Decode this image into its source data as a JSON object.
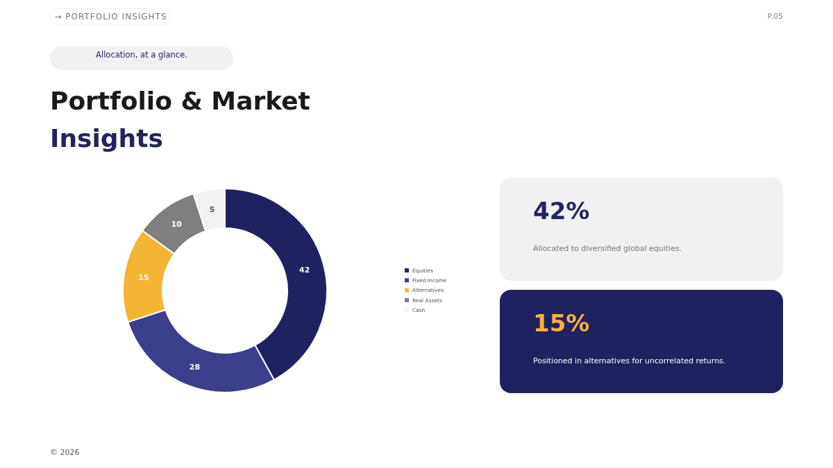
{
  "chart_data": [
    {
      "type": "donut",
      "title": "Portfolio & Market Insights",
      "subtitle": "Allocation, at a glance.",
      "annotations": [
        "→ PORTFOLIO INSIGHTS",
        "P.05",
        "© 2026"
      ],
      "categories": [
        "Equities",
        "Fixed Income",
        "Alternatives",
        "Real Assets",
        "Cash"
      ],
      "values": [
        42,
        28,
        15,
        10,
        5
      ],
      "colors": [
        "#1f2160",
        "#3b3f8c",
        "#f4b434",
        "#7f7f7f",
        "#f2f2f4"
      ],
      "data_labels": true,
      "legend": "right"
    },
    {
      "type": "other",
      "title": "42%",
      "subtitle": "Allocated to diversified global equities."
    },
    {
      "type": "other",
      "title": "15%",
      "subtitle": "Positioned in alternatives for uncorrelated returns."
    }
  ]
}
